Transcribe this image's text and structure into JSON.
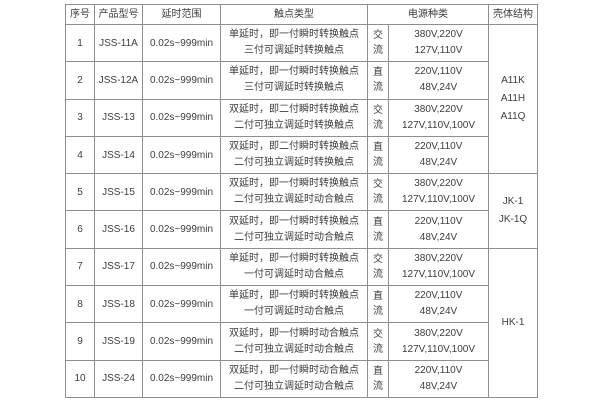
{
  "table": {
    "headers": {
      "index": "序号",
      "model": "产品型号",
      "delay": "延时范围",
      "contact": "触点类型",
      "power": "电源种类",
      "shell": "壳体结构"
    },
    "rows": [
      {
        "index": "1",
        "model": "JSS-11A",
        "delay": "0.02s~999min",
        "contact_line1": "单延时，即一付瞬时转换触点",
        "contact_line2": "三付可调延时转换触点",
        "current_char1": "交",
        "current_char2": "流",
        "voltage_line1": "380V,220V",
        "voltage_line2": "127V,110V"
      },
      {
        "index": "2",
        "model": "JSS-12A",
        "delay": "0.02s~999min",
        "contact_line1": "单延时，即一付瞬时转换触点",
        "contact_line2": "三付可调延时转换触点",
        "current_char1": "直",
        "current_char2": "流",
        "voltage_line1": "220V,110V",
        "voltage_line2": "48V,24V"
      },
      {
        "index": "3",
        "model": "JSS-13",
        "delay": "0.02s~999min",
        "contact_line1": "双延时，即二付瞬时转换触点",
        "contact_line2": "二付可独立调延时转换触点",
        "current_char1": "交",
        "current_char2": "流",
        "voltage_line1": "380V,220V",
        "voltage_line2": "127V,110V,100V"
      },
      {
        "index": "4",
        "model": "JSS-14",
        "delay": "0.02s~999min",
        "contact_line1": "双延时，即二付瞬时转换触点",
        "contact_line2": "二付可独立调延时转换触点",
        "current_char1": "直",
        "current_char2": "流",
        "voltage_line1": "220V,110V",
        "voltage_line2": "48V,24V"
      },
      {
        "index": "5",
        "model": "JSS-15",
        "delay": "0.02s~999min",
        "contact_line1": "双延时，即一付瞬时转换触点",
        "contact_line2": "二付可独立调延时动合触点",
        "current_char1": "交",
        "current_char2": "流",
        "voltage_line1": "380V,220V",
        "voltage_line2": "127V,110V,100V"
      },
      {
        "index": "6",
        "model": "JSS-16",
        "delay": "0.02s~999min",
        "contact_line1": "双延时，即一付瞬时转换触点",
        "contact_line2": "二付可独立调延时动合触点",
        "current_char1": "直",
        "current_char2": "流",
        "voltage_line1": "220V,110V",
        "voltage_line2": "48V,24V"
      },
      {
        "index": "7",
        "model": "JSS-17",
        "delay": "0.02s~999min",
        "contact_line1": "单延时，即一付瞬时转换触点",
        "contact_line2": "一付可调延时动合触点",
        "current_char1": "交",
        "current_char2": "流",
        "voltage_line1": "380V,220V",
        "voltage_line2": "127V,110V,100V"
      },
      {
        "index": "8",
        "model": "JSS-18",
        "delay": "0.02s~999min",
        "contact_line1": "单延时，即一付瞬时转换触点",
        "contact_line2": "一付可调延时动合触点",
        "current_char1": "直",
        "current_char2": "流",
        "voltage_line1": "220V,110V",
        "voltage_line2": "48V,24V"
      },
      {
        "index": "9",
        "model": "JSS-19",
        "delay": "0.02s~999min",
        "contact_line1": "双延时，即一付瞬时动合触点",
        "contact_line2": "二付可独立调延时动合触点",
        "current_char1": "交",
        "current_char2": "流",
        "voltage_line1": "380V,220V",
        "voltage_line2": "127V,110V,100V"
      },
      {
        "index": "10",
        "model": "JSS-24",
        "delay": "0.02s~999min",
        "contact_line1": "双延时，即一付瞬时动合触点",
        "contact_line2": "二付可独立调延时动合触点",
        "current_char1": "直",
        "current_char2": "流",
        "voltage_line1": "220V,110V",
        "voltage_line2": "48V,24V"
      }
    ],
    "shell_groups": [
      {
        "span_rows": 4,
        "line1": "A11K",
        "line2": "A11H",
        "line3": "A11Q"
      },
      {
        "span_rows": 2,
        "line1": "JK-1",
        "line2": "JK-1Q",
        "line3": ""
      },
      {
        "span_rows": 4,
        "line1": "HK-1",
        "line2": "",
        "line3": ""
      }
    ],
    "colors": {
      "border": "#8e8e8e",
      "text": "#3d3d3d",
      "background": "#ffffff"
    }
  }
}
